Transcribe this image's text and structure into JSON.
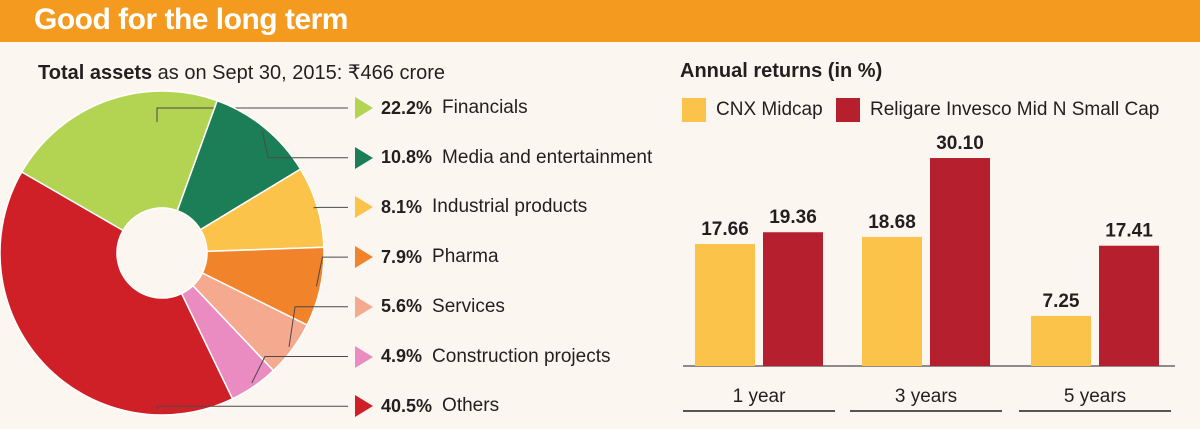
{
  "banner": {
    "title": "Good for the long term",
    "color": "#f39a1f"
  },
  "assets": {
    "heading_bold": "Total assets",
    "heading_rest": " as on Sept 30, 2015: ₹466 crore"
  },
  "returns": {
    "heading": "Annual returns (in %)"
  },
  "chart_data": [
    {
      "type": "pie",
      "title": "Total assets as on Sept 30, 2015: ₹466 crore",
      "donut": true,
      "slices": [
        {
          "pct_label": "22.2%",
          "label": "Financials",
          "value": 22.2,
          "color": "#b3d352"
        },
        {
          "pct_label": "10.8%",
          "label": "Media and entertainment",
          "value": 10.8,
          "color": "#1b7e57"
        },
        {
          "pct_label": "8.1%",
          "label": "Industrial products",
          "value": 8.1,
          "color": "#fbc34a"
        },
        {
          "pct_label": "7.9%",
          "label": "Pharma",
          "value": 7.9,
          "color": "#f1832a"
        },
        {
          "pct_label": "5.6%",
          "label": "Services",
          "value": 5.6,
          "color": "#f5a98f"
        },
        {
          "pct_label": "4.9%",
          "label": "Construction projects",
          "value": 4.9,
          "color": "#ea8cc2"
        },
        {
          "pct_label": "40.5%",
          "label": "Others",
          "value": 40.5,
          "color": "#cf2027"
        }
      ]
    },
    {
      "type": "bar",
      "title": "Annual returns (in %)",
      "categories": [
        "1 year",
        "3 years",
        "5 years"
      ],
      "series": [
        {
          "name": "CNX Midcap",
          "color": "#fbc34a",
          "values": [
            17.66,
            18.68,
            7.25
          ],
          "labels": [
            "17.66",
            "18.68",
            "7.25"
          ]
        },
        {
          "name": "Religare Invesco Mid N Small Cap",
          "color": "#b51f2e",
          "values": [
            19.36,
            30.1,
            17.41
          ],
          "labels": [
            "19.36",
            "30.10",
            "17.41"
          ]
        }
      ],
      "ylim": [
        0,
        33
      ],
      "grid": false,
      "legend": "top"
    }
  ]
}
